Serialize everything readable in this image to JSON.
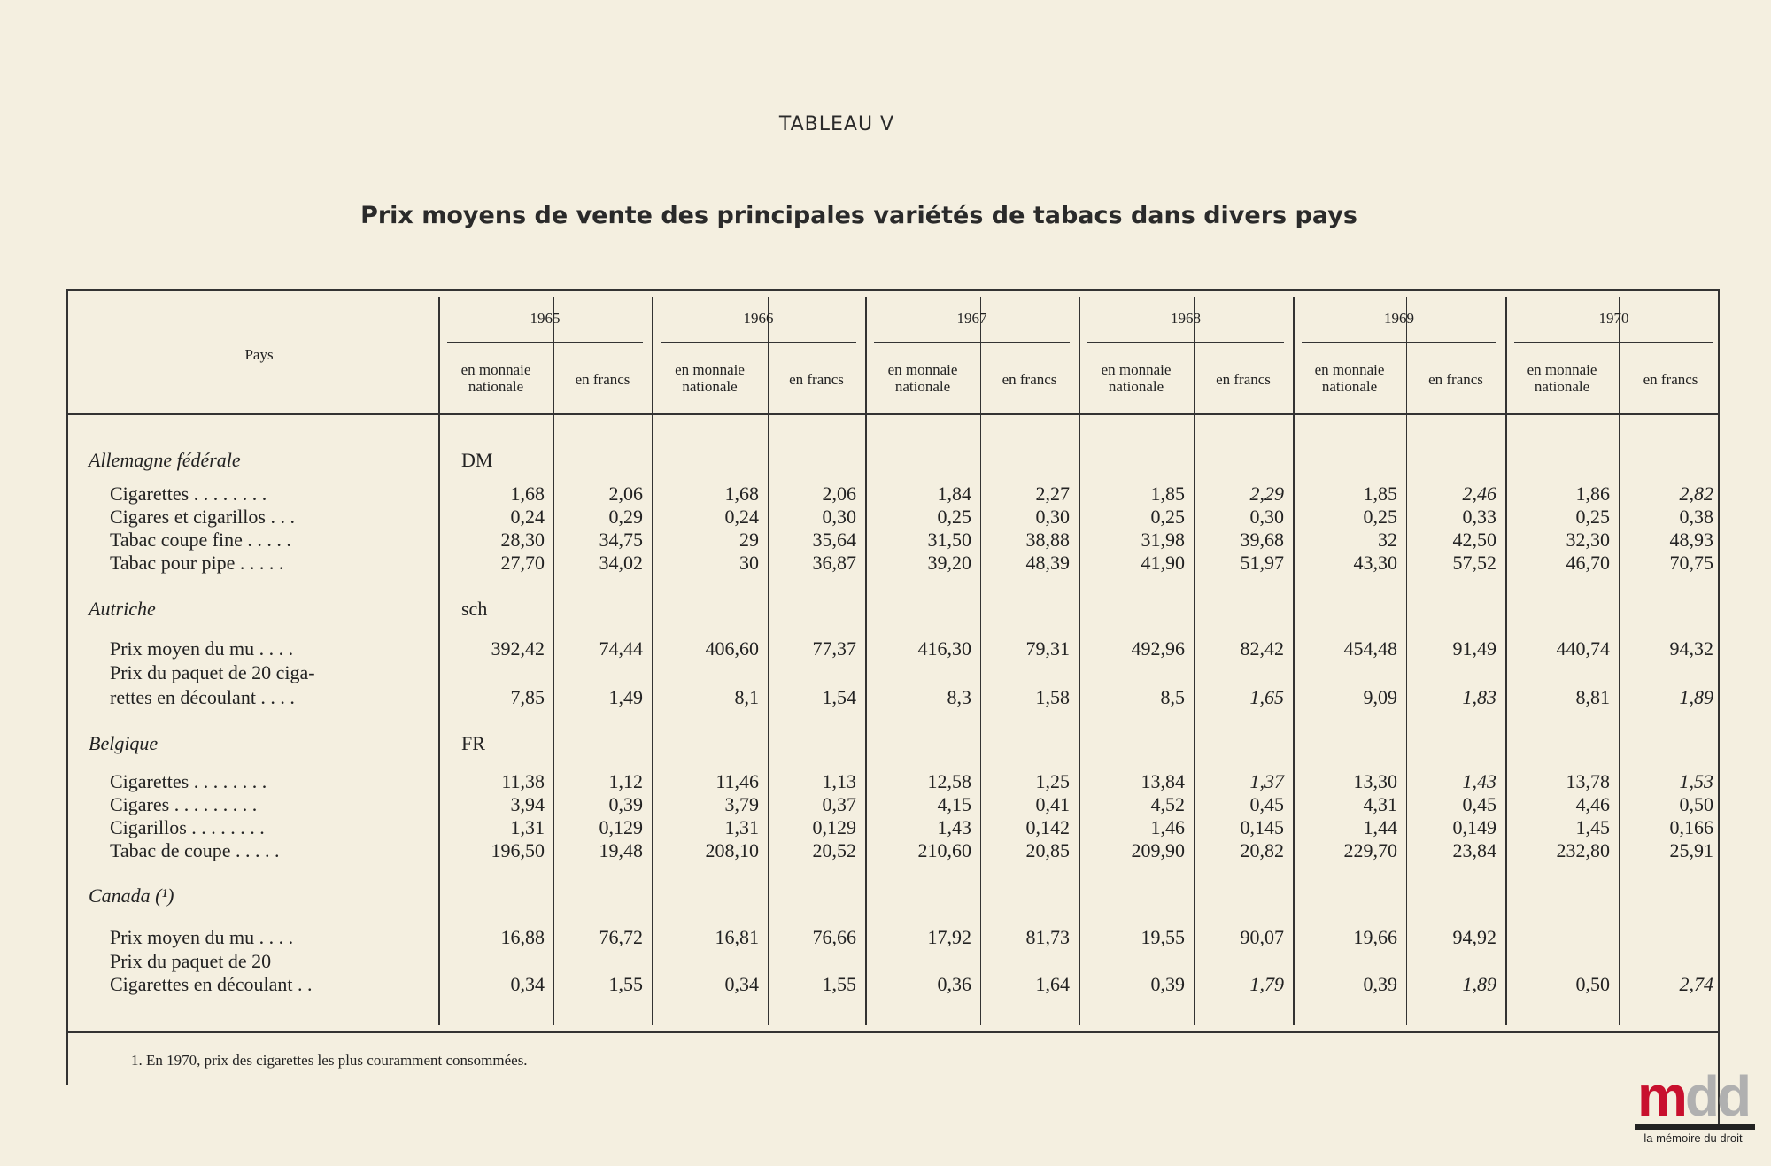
{
  "document": {
    "table_label": "TABLEAU V",
    "title": "Prix moyens de vente des principales variétés de tabacs dans divers pays",
    "header": {
      "row_header": "Pays",
      "years": [
        "1965",
        "1966",
        "1967",
        "1968",
        "1969",
        "1970"
      ],
      "sub_national": "en monnaie nationale",
      "sub_francs": "en francs"
    },
    "groups": [
      {
        "country": "Allemagne fédérale",
        "unit": "DM",
        "items": [
          {
            "label": [
              "Cigarettes . . . . . . . ."
            ],
            "values": [
              "1,68",
              "2,06",
              "1,68",
              "2,06",
              "1,84",
              "2,27",
              "1,85",
              "2,29",
              "1,85",
              "2,46",
              "1,86",
              "2,82"
            ],
            "italic": [
              7,
              9,
              11
            ]
          },
          {
            "label": [
              "Cigares et cigarillos . . ."
            ],
            "values": [
              "0,24",
              "0,29",
              "0,24",
              "0,30",
              "0,25",
              "0,30",
              "0,25",
              "0,30",
              "0,25",
              "0,33",
              "0,25",
              "0,38"
            ],
            "italic": []
          },
          {
            "label": [
              "Tabac coupe fine . . . . ."
            ],
            "values": [
              "28,30",
              "34,75",
              "29",
              "35,64",
              "31,50",
              "38,88",
              "31,98",
              "39,68",
              "32",
              "42,50",
              "32,30",
              "48,93"
            ],
            "italic": []
          },
          {
            "label": [
              "Tabac pour pipe . . . . ."
            ],
            "values": [
              "27,70",
              "34,02",
              "30",
              "36,87",
              "39,20",
              "48,39",
              "41,90",
              "51,97",
              "43,30",
              "57,52",
              "46,70",
              "70,75"
            ],
            "italic": []
          }
        ]
      },
      {
        "country": "Autriche",
        "unit": "sch",
        "items": [
          {
            "label": [
              "Prix moyen du mu . . . ."
            ],
            "values": [
              "392,42",
              "74,44",
              "406,60",
              "77,37",
              "416,30",
              "79,31",
              "492,96",
              "82,42",
              "454,48",
              "91,49",
              "440,74",
              "94,32"
            ],
            "italic": []
          },
          {
            "label": [
              "Prix du paquet de 20 ciga-",
              "rettes en découlant . . . ."
            ],
            "values": [
              "7,85",
              "1,49",
              "8,1",
              "1,54",
              "8,3",
              "1,58",
              "8,5",
              "1,65",
              "9,09",
              "1,83",
              "8,81",
              "1,89"
            ],
            "italic": [
              7,
              9,
              11
            ]
          }
        ]
      },
      {
        "country": "Belgique",
        "unit": "FR",
        "items": [
          {
            "label": [
              "Cigarettes . . . . . . . ."
            ],
            "values": [
              "11,38",
              "1,12",
              "11,46",
              "1,13",
              "12,58",
              "1,25",
              "13,84",
              "1,37",
              "13,30",
              "1,43",
              "13,78",
              "1,53"
            ],
            "italic": [
              7,
              9,
              11
            ]
          },
          {
            "label": [
              "Cigares . . . . . . . . ."
            ],
            "values": [
              "3,94",
              "0,39",
              "3,79",
              "0,37",
              "4,15",
              "0,41",
              "4,52",
              "0,45",
              "4,31",
              "0,45",
              "4,46",
              "0,50"
            ],
            "italic": []
          },
          {
            "label": [
              "Cigarillos . . . . . . . ."
            ],
            "values": [
              "1,31",
              "0,129",
              "1,31",
              "0,129",
              "1,43",
              "0,142",
              "1,46",
              "0,145",
              "1,44",
              "0,149",
              "1,45",
              "0,166"
            ],
            "italic": []
          },
          {
            "label": [
              "Tabac de coupe . . . . ."
            ],
            "values": [
              "196,50",
              "19,48",
              "208,10",
              "20,52",
              "210,60",
              "20,85",
              "209,90",
              "20,82",
              "229,70",
              "23,84",
              "232,80",
              "25,91"
            ],
            "italic": []
          }
        ]
      },
      {
        "country": "Canada (¹)",
        "unit": "",
        "items": [
          {
            "label": [
              "Prix moyen du mu . . . ."
            ],
            "values": [
              "16,88",
              "76,72",
              "16,81",
              "76,66",
              "17,92",
              "81,73",
              "19,55",
              "90,07",
              "19,66",
              "94,92",
              "",
              ""
            ],
            "italic": []
          },
          {
            "label": [
              "Prix   du   paquet   de   20",
              "Cigarettes en découlant . ."
            ],
            "values": [
              "0,34",
              "1,55",
              "0,34",
              "1,55",
              "0,36",
              "1,64",
              "0,39",
              "1,79",
              "0,39",
              "1,89",
              "0,50",
              "2,74"
            ],
            "italic": [
              7,
              9,
              11
            ]
          }
        ]
      }
    ],
    "footnote": "1. En 1970, prix des cigarettes les plus couramment consommées."
  },
  "logo": {
    "text": "mdd",
    "tagline": "la mémoire du droit",
    "colors": {
      "m": "#c8102e",
      "dd": "#b0b0b0"
    }
  }
}
